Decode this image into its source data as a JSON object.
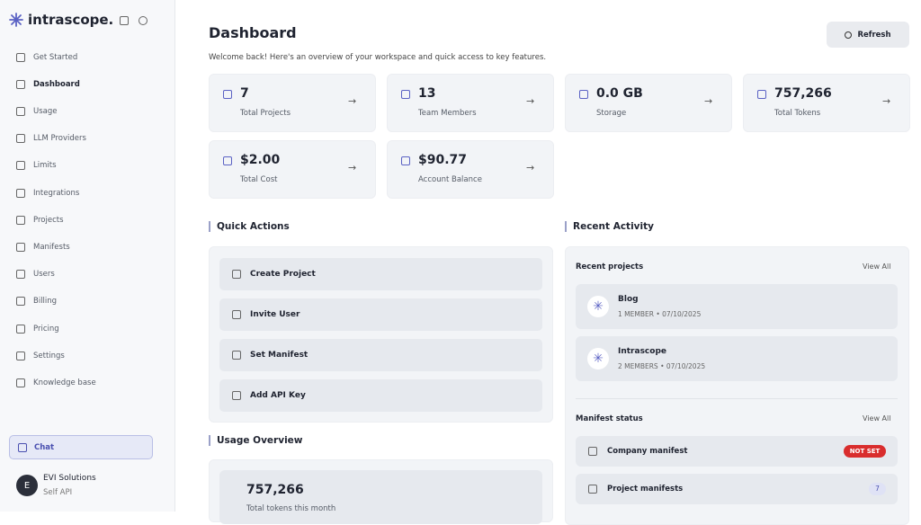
{
  "brand": "intrascope.",
  "nav": [
    "Get Started",
    "Dashboard",
    "Usage",
    "LLM Providers",
    "Limits",
    "Integrations",
    "Projects",
    "Manifests",
    "Users",
    "Billing",
    "Pricing",
    "Settings",
    "Knowledge base"
  ],
  "chat": "Chat",
  "user": {
    "initial": "E",
    "name": "EVI Solutions",
    "org": "Self API"
  },
  "header": {
    "title": "Dashboard",
    "subtitle": "Welcome back! Here's an overview of your workspace and quick access to key features.",
    "refresh": "Refresh"
  },
  "stats": [
    {
      "value": "7",
      "label": "Total Projects"
    },
    {
      "value": "13",
      "label": "Team Members"
    },
    {
      "value": "0.0 GB",
      "label": "Storage"
    },
    {
      "value": "757,266",
      "label": "Total Tokens"
    },
    {
      "value": "$2.00",
      "label": "Total Cost"
    },
    {
      "value": "$90.77",
      "label": "Account Balance"
    }
  ],
  "quick_actions": {
    "title": "Quick Actions",
    "items": [
      "Create Project",
      "Invite User",
      "Set Manifest",
      "Add API Key"
    ]
  },
  "usage": {
    "title": "Usage Overview",
    "value": "757,266",
    "label": "Total tokens this month"
  },
  "recent": {
    "title": "Recent Activity",
    "projects_title": "Recent projects",
    "projects_link": "View All",
    "projects": [
      {
        "name": "Blog",
        "meta": "1 MEMBER • 07/10/2025"
      },
      {
        "name": "Intrascope",
        "meta": "2 MEMBERS • 07/10/2025"
      }
    ],
    "manifest_title": "Manifest status",
    "manifest_link": "View All",
    "manifests": [
      {
        "name": "Company manifest",
        "status": "NOT SET"
      },
      {
        "name": "Project manifests",
        "status": "7"
      }
    ]
  }
}
